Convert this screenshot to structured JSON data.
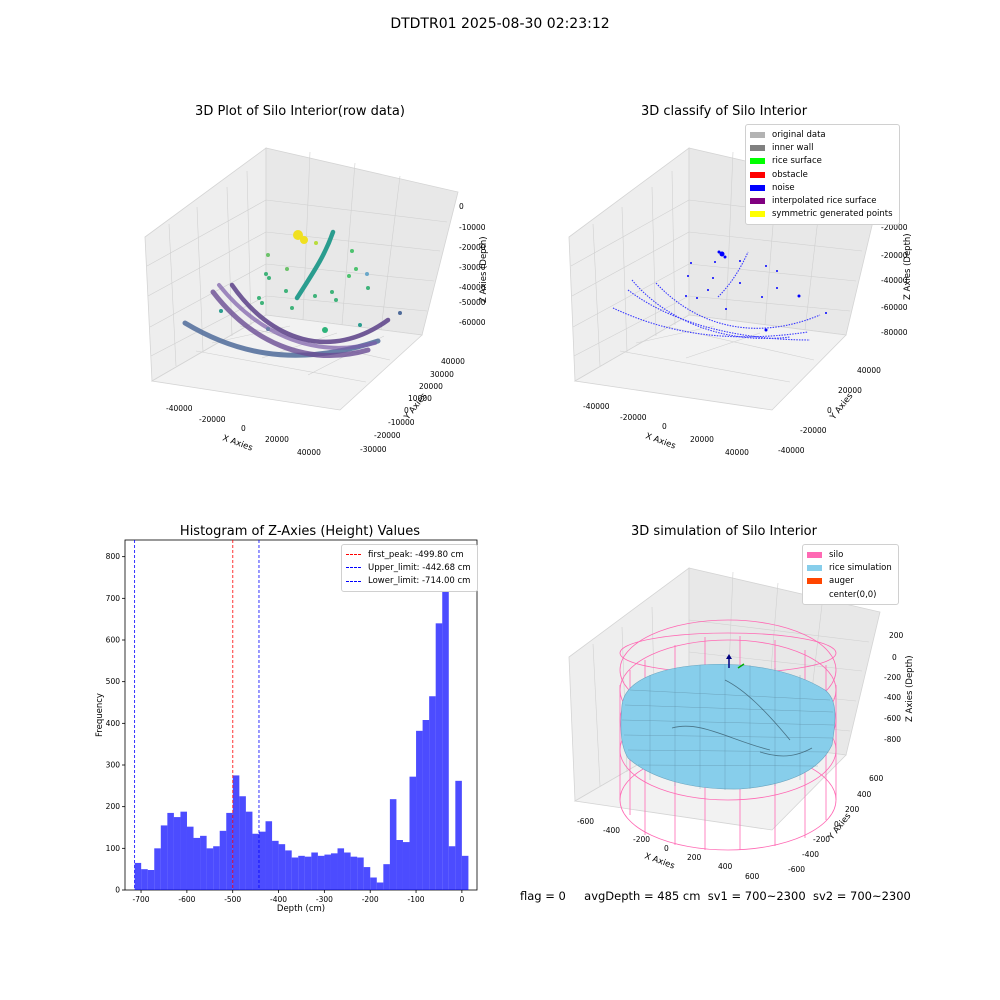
{
  "figure": {
    "suptitle": "DTDTR01 2025-08-30 02:23:12",
    "footer": {
      "flag": "flag = 0",
      "avg_depth": "avgDepth = 485 cm",
      "sv1": "sv1 = 700~2300",
      "sv2": "sv2 = 700~2300"
    }
  },
  "plots": {
    "raw": {
      "title": "3D Plot of Silo Interior(row data)",
      "xlabel": "X Axies",
      "ylabel": "Y Axies",
      "zlabel": "Z Axies (Depth)",
      "xticks": [
        "-40000",
        "-20000",
        "0",
        "20000",
        "40000"
      ],
      "yticks": [
        "40000",
        "30000",
        "20000",
        "10000",
        "0",
        "-10000",
        "-20000",
        "-30000"
      ],
      "zticks": [
        "0",
        "-10000",
        "-20000",
        "-30000",
        "-40000",
        "-50000",
        "-60000"
      ]
    },
    "classify": {
      "title": "3D classify of Silo Interior",
      "xlabel": "X Axies",
      "ylabel": "Y Axies",
      "zlabel": "Z Axies (Depth)",
      "xticks": [
        "-40000",
        "-20000",
        "0",
        "20000",
        "40000"
      ],
      "yticks": [
        "40000",
        "20000",
        "0",
        "-20000",
        "-40000"
      ],
      "zticks": [
        "-20000",
        "-40000",
        "-60000",
        "-80000"
      ],
      "legend": [
        {
          "label": "original data",
          "color": "#b3b3b3"
        },
        {
          "label": "inner wall",
          "color": "#808080"
        },
        {
          "label": "rice surface",
          "color": "#00ff00"
        },
        {
          "label": "obstacle",
          "color": "#ff0000"
        },
        {
          "label": "noise",
          "color": "#0000ff"
        },
        {
          "label": "interpolated rice surface",
          "color": "#800080"
        },
        {
          "label": "symmetric generated points",
          "color": "#ffff00"
        }
      ]
    },
    "simulation": {
      "title": "3D simulation of Silo Interior",
      "xlabel": "X Axies",
      "ylabel": "Y Axies",
      "zlabel": "Z Axies (Depth)",
      "xticks": [
        "-600",
        "-400",
        "-200",
        "0",
        "200",
        "400",
        "600"
      ],
      "yticks": [
        "600",
        "400",
        "200",
        "0",
        "-200",
        "-400",
        "-600"
      ],
      "zticks": [
        "200",
        "0",
        "-200",
        "-400",
        "-600",
        "-800"
      ],
      "legend": [
        {
          "label": "silo",
          "color": "#ff69b4"
        },
        {
          "label": "rice simulation",
          "color": "#87ceeb"
        },
        {
          "label": "auger",
          "color": "#ff4500"
        },
        {
          "label": "center(0,0)",
          "color": "#ffffff"
        }
      ]
    }
  },
  "chart_data": {
    "type": "bar",
    "title": "Histogram of Z-Axies (Height) Values",
    "xlabel": "Depth (cm)",
    "ylabel": "Frequency",
    "xlim": [
      -735,
      33
    ],
    "ylim": [
      0,
      840
    ],
    "xticks": [
      -700,
      -600,
      -500,
      -400,
      -300,
      -200,
      -100,
      0
    ],
    "yticks": [
      0,
      100,
      200,
      300,
      400,
      500,
      600,
      700,
      800
    ],
    "bar_color": "#0000ff",
    "bar_alpha": 0.7,
    "bins": {
      "start": -714,
      "width": 14.28
    },
    "values": [
      65,
      50,
      48,
      100,
      155,
      185,
      175,
      188,
      152,
      125,
      130,
      100,
      105,
      142,
      185,
      275,
      225,
      188,
      135,
      140,
      165,
      118,
      110,
      95,
      78,
      82,
      80,
      90,
      82,
      85,
      88,
      100,
      90,
      80,
      78,
      55,
      30,
      18,
      62,
      218,
      120,
      115,
      272,
      382,
      408,
      465,
      640,
      795,
      105,
      262,
      82
    ],
    "lines": [
      {
        "label": "first_peak: -499.80 cm",
        "x": -499.8,
        "color": "#ff0000"
      },
      {
        "label": "Upper_limit: -442.68 cm",
        "x": -442.68,
        "color": "#0000ff"
      },
      {
        "label": "Lower_limit: -714.00 cm",
        "x": -714.0,
        "color": "#0000ff"
      }
    ],
    "legend_position": "upper right"
  }
}
